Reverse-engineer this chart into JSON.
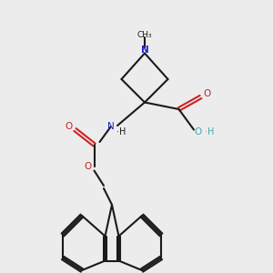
{
  "bg_color": "#ececec",
  "line_color": "#1a1a1a",
  "N_color": "#2222cc",
  "O_color": "#cc2222",
  "OH_color": "#44aaaa",
  "lw": 1.5,
  "atoms": {
    "CH3_label": "CH₃",
    "N_label": "N",
    "NH_label": "N",
    "H_label": "H",
    "O_label": "O",
    "OH_label": "O",
    "OHtext": "H"
  }
}
